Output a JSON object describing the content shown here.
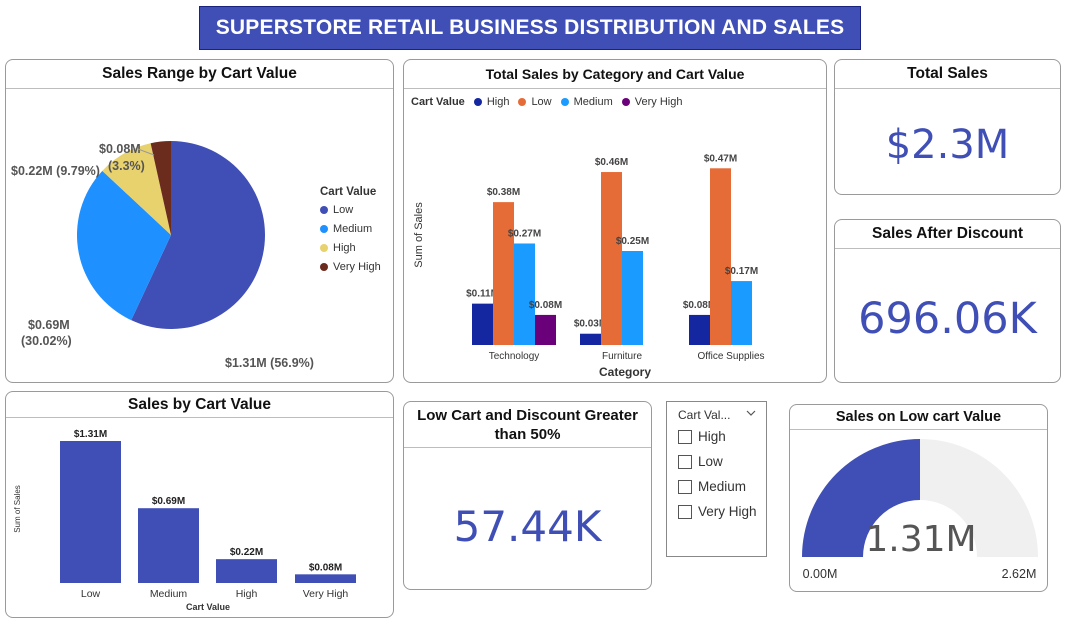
{
  "dashboard_title": "SUPERSTORE RETAIL BUSINESS DISTRIBUTION AND SALES",
  "colors": {
    "low": "#3f4fb5",
    "medium": "#1e90ff",
    "high": "#e8d26e",
    "very_high": "#6b2c1e",
    "cat_high": "#1426a0",
    "cat_low": "#e66c37",
    "cat_medium": "#1a9bff",
    "cat_very_high": "#6b007b",
    "gauge_track": "#f0f0f0"
  },
  "pie_card": {
    "title": "Sales Range by Cart Value",
    "legend_title": "Cart Value",
    "legend": [
      "Low",
      "Medium",
      "High",
      "Very High"
    ],
    "labels": [
      "$1.31M (56.9%)",
      "$0.69M",
      "(30.02%)",
      "$0.22M (9.79%)",
      "$0.08M",
      "(3.3%)"
    ]
  },
  "category_card": {
    "title": "Total Sales by Category and Cart Value",
    "legend_title": "Cart Value",
    "legend": [
      "High",
      "Low",
      "Medium",
      "Very High"
    ],
    "xlabel": "Category",
    "ylabel": "Sum of Sales"
  },
  "total_sales": {
    "title": "Total Sales",
    "value": "$2.3M"
  },
  "sales_after_discount": {
    "title": "Sales After Discount",
    "value": "696.06K"
  },
  "cart_value_bar": {
    "title": "Sales by Cart Value",
    "xlabel": "Cart Value",
    "ylabel": "Sum of Sales"
  },
  "low_cart_discount": {
    "title_line1": "Low Cart and Discount Greater",
    "title_line2": "than 50%",
    "value": "57.44K"
  },
  "slicer": {
    "header": "Cart Val...",
    "options": [
      "High",
      "Low",
      "Medium",
      "Very High"
    ]
  },
  "gauge": {
    "title": "Sales on Low cart Value",
    "value_label": "1.31M",
    "min_label": "0.00M",
    "max_label": "2.62M",
    "value": 1.31,
    "min": 0,
    "max": 2.62
  },
  "chart_data": [
    {
      "type": "pie",
      "title": "Sales Range by Cart Value",
      "categories": [
        "Low",
        "Medium",
        "High",
        "Very High"
      ],
      "values": [
        1.31,
        0.69,
        0.22,
        0.08
      ],
      "percent": [
        56.9,
        30.02,
        9.79,
        3.3
      ],
      "unit": "$M",
      "legend_position": "right"
    },
    {
      "type": "bar",
      "title": "Total Sales by Category and Cart Value",
      "categories": [
        "Technology",
        "Furniture",
        "Office Supplies"
      ],
      "series": [
        {
          "name": "High",
          "values": [
            0.11,
            0.03,
            0.08
          ]
        },
        {
          "name": "Low",
          "values": [
            0.38,
            0.46,
            0.47
          ]
        },
        {
          "name": "Medium",
          "values": [
            0.27,
            0.25,
            0.17
          ]
        },
        {
          "name": "Very High",
          "values": [
            0.08,
            null,
            null
          ]
        }
      ],
      "data_labels": [
        [
          "$0.11M",
          "$0.38M",
          "$0.27M",
          "$0.08M"
        ],
        [
          "$0.03M",
          "$0.46M",
          "$0.25M",
          ""
        ],
        [
          "$0.08M",
          "$0.47M",
          "$0.17M",
          ""
        ]
      ],
      "xlabel": "Category",
      "ylabel": "Sum of Sales",
      "ylim": [
        0,
        0.5
      ],
      "grid": false,
      "legend_position": "top-left"
    },
    {
      "type": "bar",
      "title": "Sales by Cart Value",
      "categories": [
        "Low",
        "Medium",
        "High",
        "Very High"
      ],
      "values": [
        1.31,
        0.69,
        0.22,
        0.08
      ],
      "data_labels": [
        "$1.31M",
        "$0.69M",
        "$0.22M",
        "$0.08M"
      ],
      "xlabel": "Cart Value",
      "ylabel": "Sum of Sales",
      "ylim": [
        0,
        1.31
      ],
      "grid": false
    }
  ]
}
